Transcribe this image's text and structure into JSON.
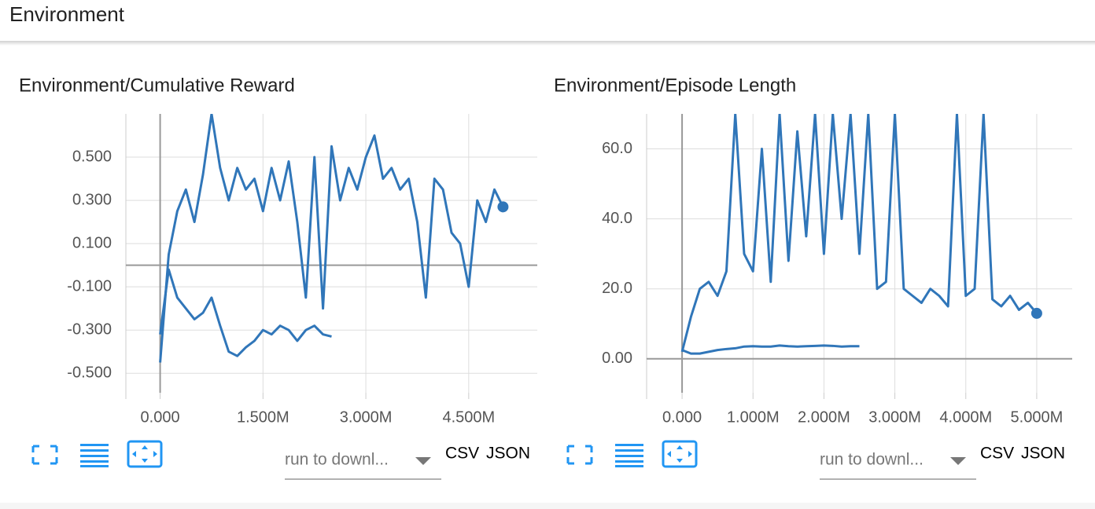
{
  "header": {
    "title": "Environment"
  },
  "cards": [
    {
      "title": "Environment/Cumulative Reward",
      "chart_data": {
        "type": "line",
        "grid": true,
        "xlim": [
          -500000,
          5500000
        ],
        "xticks": [
          {
            "value": 0,
            "label": "0.000"
          },
          {
            "value": 1500000,
            "label": "1.500M"
          },
          {
            "value": 3000000,
            "label": "3.000M"
          },
          {
            "value": 4500000,
            "label": "4.500M"
          }
        ],
        "ylim": [
          -0.59,
          0.7
        ],
        "yticks": [
          {
            "value": 0.5,
            "label": "0.500"
          },
          {
            "value": 0.3,
            "label": "0.300"
          },
          {
            "value": 0.1,
            "label": "0.100"
          },
          {
            "value": -0.1,
            "label": "-0.100"
          },
          {
            "value": -0.3,
            "label": "-0.300"
          },
          {
            "value": -0.5,
            "label": "-0.500"
          }
        ],
        "x": [
          0,
          125000,
          250000,
          375000,
          500000,
          625000,
          750000,
          875000,
          1000000,
          1125000,
          1250000,
          1375000,
          1500000,
          1625000,
          1750000,
          1875000,
          2000000,
          2125000,
          2250000,
          2375000,
          2500000,
          2625000,
          2750000,
          2875000,
          3000000,
          3125000,
          3250000,
          3375000,
          3500000,
          3625000,
          3750000,
          3875000,
          4000000,
          4125000,
          4250000,
          4375000,
          4500000,
          4625000,
          4750000,
          4875000,
          5000000
        ],
        "series": [
          {
            "color": "#3076b9",
            "values": [
              -0.45,
              0.05,
              0.25,
              0.35,
              0.2,
              0.42,
              0.7,
              0.45,
              0.3,
              0.45,
              0.35,
              0.4,
              0.25,
              0.45,
              0.3,
              0.48,
              0.2,
              -0.15,
              0.5,
              -0.2,
              0.55,
              0.3,
              0.45,
              0.35,
              0.5,
              0.6,
              0.4,
              0.45,
              0.35,
              0.4,
              0.2,
              -0.15,
              0.4,
              0.35,
              0.15,
              0.1,
              -0.1,
              0.3,
              0.2,
              0.35,
              0.27
            ]
          },
          {
            "color": "#3076b9",
            "values": [
              -0.32,
              -0.02,
              -0.15,
              -0.2,
              -0.25,
              -0.22,
              -0.15,
              -0.28,
              -0.4,
              -0.42,
              -0.38,
              -0.35,
              -0.3,
              -0.32,
              -0.28,
              -0.3,
              -0.35,
              -0.3,
              -0.28,
              -0.32,
              -0.33,
              null,
              null,
              null,
              null,
              null,
              null,
              null,
              null,
              null,
              null,
              null,
              null,
              null,
              null,
              null,
              null,
              null,
              null,
              null,
              null
            ]
          }
        ]
      },
      "controls": {
        "run_select": "run to downl...",
        "csv": "CSV",
        "json": "JSON"
      }
    },
    {
      "title": "Environment/Episode Length",
      "chart_data": {
        "type": "line",
        "grid": true,
        "xlim": [
          -500000,
          5500000
        ],
        "xticks": [
          {
            "value": 0,
            "label": "0.000"
          },
          {
            "value": 1000000,
            "label": "1.000M"
          },
          {
            "value": 2000000,
            "label": "2.000M"
          },
          {
            "value": 3000000,
            "label": "3.000M"
          },
          {
            "value": 4000000,
            "label": "4.000M"
          },
          {
            "value": 5000000,
            "label": "5.000M"
          }
        ],
        "ylim": [
          -9.7,
          70
        ],
        "yticks": [
          {
            "value": 0,
            "label": "0.00"
          },
          {
            "value": 20,
            "label": "20.0"
          },
          {
            "value": 40,
            "label": "40.0"
          },
          {
            "value": 60,
            "label": "60.0"
          }
        ],
        "x": [
          0,
          125000,
          250000,
          375000,
          500000,
          625000,
          750000,
          875000,
          1000000,
          1125000,
          1250000,
          1375000,
          1500000,
          1625000,
          1750000,
          1875000,
          2000000,
          2125000,
          2250000,
          2375000,
          2500000,
          2625000,
          2750000,
          2875000,
          3000000,
          3125000,
          3250000,
          3375000,
          3500000,
          3625000,
          3750000,
          3875000,
          4000000,
          4125000,
          4250000,
          4375000,
          4500000,
          4625000,
          4750000,
          4875000,
          5000000
        ],
        "series": [
          {
            "color": "#3076b9",
            "values": [
              2,
              12,
              20,
              22,
              18,
              25,
              70,
              30,
              25,
              60,
              22,
              70,
              28,
              65,
              35,
              70,
              30,
              70,
              40,
              70,
              30,
              70,
              20,
              22,
              70,
              20,
              18,
              16,
              20,
              18,
              15,
              70,
              18,
              20,
              70,
              17,
              15,
              18,
              14,
              16,
              13
            ]
          },
          {
            "color": "#3076b9",
            "values": [
              2.5,
              1.5,
              1.5,
              2,
              2.5,
              2.8,
              3,
              3.5,
              3.6,
              3.5,
              3.5,
              3.8,
              3.6,
              3.5,
              3.6,
              3.7,
              3.8,
              3.7,
              3.5,
              3.6,
              3.6,
              null,
              null,
              null,
              null,
              null,
              null,
              null,
              null,
              null,
              null,
              null,
              null,
              null,
              null,
              null,
              null,
              null,
              null,
              null,
              null
            ]
          }
        ]
      },
      "controls": {
        "run_select": "run to downl...",
        "csv": "CSV",
        "json": "JSON"
      }
    }
  ]
}
